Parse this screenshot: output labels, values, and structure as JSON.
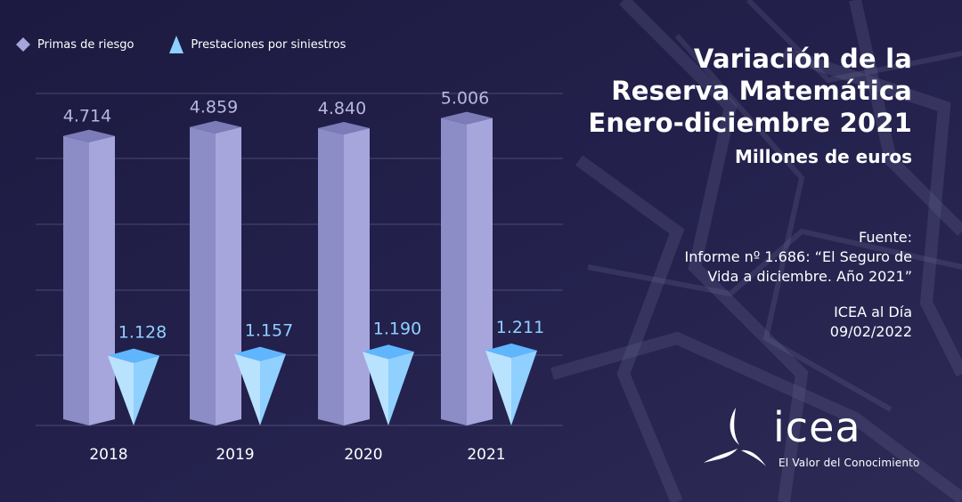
{
  "chart_data": {
    "type": "bar",
    "title": "Variación de la Reserva Matemática Enero-diciembre 2021",
    "subtitle": "Millones de euros",
    "categories": [
      "2018",
      "2019",
      "2020",
      "2021"
    ],
    "series": [
      {
        "name": "Primas de riesgo",
        "values": [
          4714,
          4859,
          4840,
          5006
        ],
        "labels": [
          "4.714",
          "4.859",
          "4.840",
          "5.006"
        ],
        "color": "#a6a6dc"
      },
      {
        "name": "Prestaciones por siniestros",
        "values": [
          1128,
          1157,
          1190,
          1211
        ],
        "labels": [
          "1.128",
          "1.157",
          "1.190",
          "1.211"
        ],
        "color": "#8fd0ff"
      }
    ],
    "xlabel": "",
    "ylabel": "",
    "grid": true,
    "legend": "top-left"
  },
  "title_lines": [
    "Variación de la",
    "Reserva Matemática",
    "Enero-diciembre 2021"
  ],
  "subtitle": "Millones de euros",
  "source": {
    "label": "Fuente:",
    "line1": "Informe nº 1.686: “El Seguro de",
    "line2": "Vida a diciembre. Año 2021”",
    "publication": "ICEA al Día",
    "date": "09/02/2022"
  },
  "logo": {
    "name": "icea",
    "tagline": "El Valor del Conocimiento"
  },
  "colors": {
    "background": "#1f1c45",
    "primas_front": "#a6a6dc",
    "primas_side": "#8c8cc6",
    "primas_top": "#7c7cb8",
    "prestaciones": "#8fd0ff",
    "prestaciones_label": "#8fd0ff",
    "primas_label": "#b7b7e0"
  }
}
